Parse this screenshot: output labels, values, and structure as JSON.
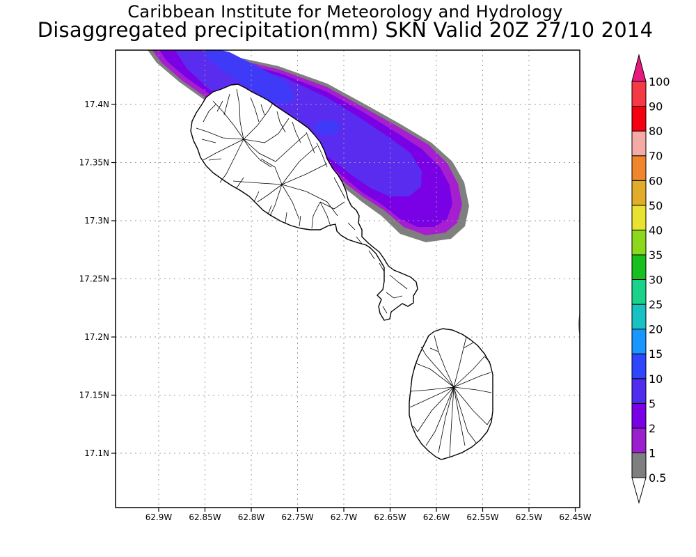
{
  "header": {
    "title_line1": "Caribbean Institute for Meteorology and Hydrology",
    "title_line2": "Disaggregated precipitation(mm) SKN Valid 20Z 27/10 2014"
  },
  "map": {
    "lat_ticks": [
      "17.4N",
      "17.35N",
      "17.3N",
      "17.25N",
      "17.2N",
      "17.15N",
      "17.1N"
    ],
    "lon_ticks": [
      "62.9W",
      "62.85W",
      "62.8W",
      "62.75W",
      "62.7W",
      "62.65W",
      "62.6W",
      "62.55W",
      "62.5W",
      "62.45W"
    ],
    "lat_range": [
      17.05,
      17.445
    ],
    "lon_range": [
      -62.947,
      -62.447
    ],
    "grid": "dotted",
    "islands": [
      "St Kitts",
      "Nevis"
    ]
  },
  "legend": {
    "levels": [
      {
        "label": "0.5",
        "color": "#ffffff"
      },
      {
        "label": "1",
        "color": "#7f7f7f"
      },
      {
        "label": "2",
        "color": "#9b1fcf"
      },
      {
        "label": "5",
        "color": "#7a00e6"
      },
      {
        "label": "10",
        "color": "#4f2cf0"
      },
      {
        "label": "15",
        "color": "#2f46ff"
      },
      {
        "label": "20",
        "color": "#1a96ff"
      },
      {
        "label": "25",
        "color": "#18c2c2"
      },
      {
        "label": "30",
        "color": "#1ad28a"
      },
      {
        "label": "35",
        "color": "#16c01e"
      },
      {
        "label": "40",
        "color": "#8bd81c"
      },
      {
        "label": "50",
        "color": "#e8e230"
      },
      {
        "label": "60",
        "color": "#e1ac2a"
      },
      {
        "label": "70",
        "color": "#f0862c"
      },
      {
        "label": "80",
        "color": "#f6aaa6"
      },
      {
        "label": "90",
        "color": "#f40010"
      },
      {
        "label": "100",
        "color": "#f43a44"
      }
    ],
    "over_color": "#e8197d"
  },
  "precip_colors": {
    "band_0_5": "#7f7f7f",
    "band_1": "#a51fd1",
    "band_2": "#7a00e6",
    "band_5": "#5a2cf0",
    "band_10": "#3f3af8"
  }
}
